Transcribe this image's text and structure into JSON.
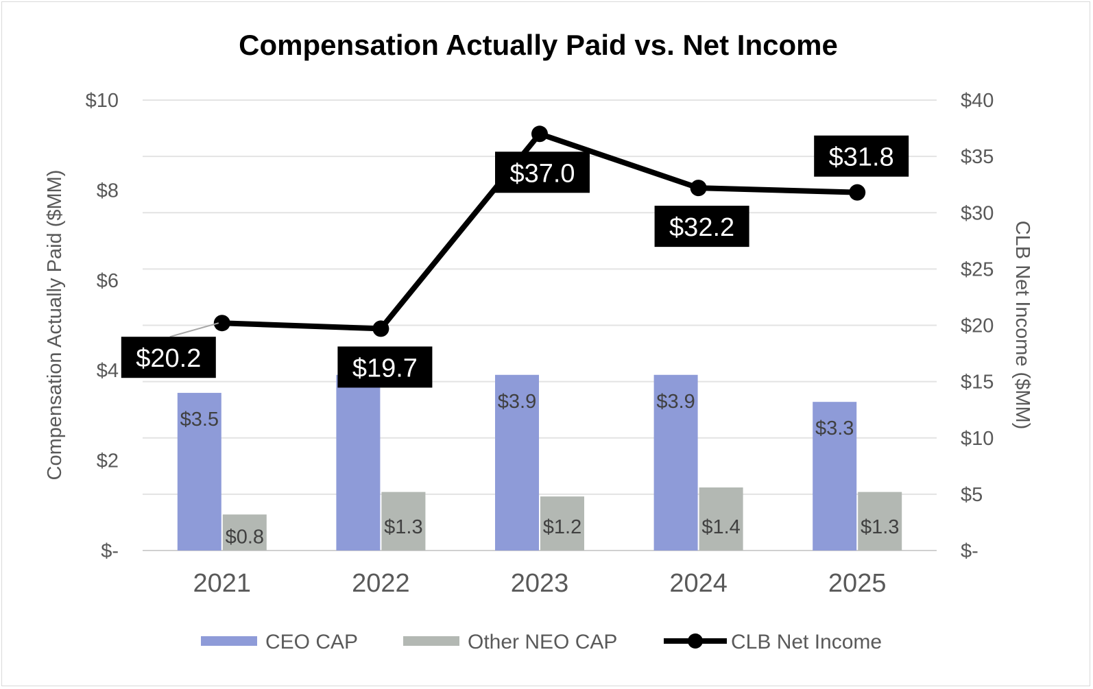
{
  "chart_data": {
    "type": "bar",
    "title": "Compensation Actually Paid vs. Net Income",
    "categories": [
      "2021",
      "2022",
      "2023",
      "2024",
      "2025"
    ],
    "ylabel": "Compensation  Actually Paid ($MM)",
    "y2label": "CLB Net Income ($MM)",
    "ylim": [
      0,
      10
    ],
    "y2lim": [
      0,
      40
    ],
    "yticks": [
      0,
      2,
      4,
      6,
      8,
      10
    ],
    "ytick_labels": [
      "$-",
      "$2",
      "$4",
      "$6",
      "$8",
      "$10"
    ],
    "y2ticks": [
      0,
      5,
      10,
      15,
      20,
      25,
      30,
      35,
      40
    ],
    "y2tick_labels": [
      "$-",
      "$5",
      "$10",
      "$15",
      "$20",
      "$25",
      "$30",
      "$35",
      "$40"
    ],
    "grid": true,
    "legend_position": "bottom",
    "series": [
      {
        "name": "CEO CAP",
        "type": "bar",
        "axis": "left",
        "color": "#8e9bd8",
        "values": [
          3.5,
          3.9,
          3.9,
          3.9,
          3.3
        ],
        "labels": [
          "$3.5",
          "",
          "$3.9",
          "$3.9",
          "$3.3"
        ]
      },
      {
        "name": "Other NEO CAP",
        "type": "bar",
        "axis": "left",
        "color": "#b3b8b3",
        "values": [
          0.8,
          1.3,
          1.2,
          1.4,
          1.3
        ],
        "labels": [
          "$0.8",
          "$1.3",
          "$1.2",
          "$1.4",
          "$1.3"
        ]
      },
      {
        "name": "CLB Net Income",
        "type": "line",
        "axis": "right",
        "color": "#000000",
        "values": [
          20.2,
          19.7,
          37.0,
          32.2,
          31.8
        ],
        "labels": [
          "$20.2",
          "$19.7",
          "$37.0",
          "$32.2",
          "$31.8"
        ]
      }
    ]
  }
}
